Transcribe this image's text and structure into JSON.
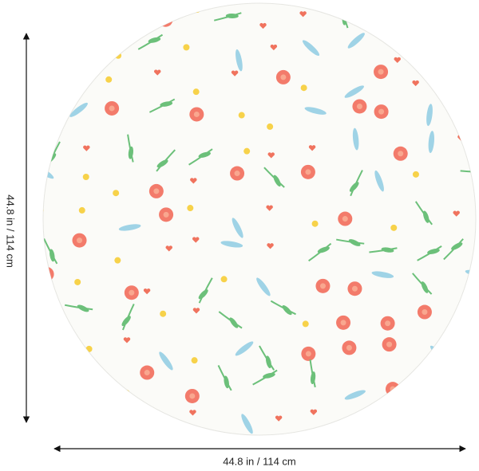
{
  "dimensions": {
    "height": "44.8 in / 114 cm",
    "width": "44.8 in / 114 cm"
  }
}
